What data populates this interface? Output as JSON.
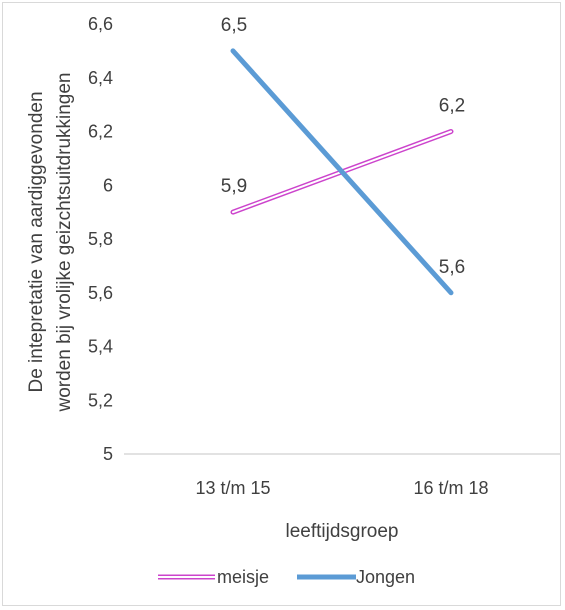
{
  "chart_data": {
    "type": "line",
    "categories": [
      "13 t/m 15",
      "16 t/m 18"
    ],
    "series": [
      {
        "name": "meisje",
        "values": [
          5.9,
          6.2
        ],
        "labels": [
          "5,9",
          "6,2"
        ]
      },
      {
        "name": "Jongen",
        "values": [
          6.5,
          5.6
        ],
        "labels": [
          "6,5",
          "5,6"
        ]
      }
    ],
    "colors": {
      "meisje": "#cc44cc",
      "Jongen": "#5b9bd5"
    },
    "line_style": {
      "meisje": "double",
      "Jongen": "solid"
    },
    "title": "",
    "xlabel": "leeftijdsgroep",
    "ylabel_line1": "De intepretatie van aardiggevonden",
    "ylabel_line2": "worden bij vrolijke geizchtsuitdrukkingen",
    "ylim": [
      5,
      6.6
    ],
    "yticks": [
      "5",
      "5,2",
      "5,4",
      "5,6",
      "5,8",
      "6",
      "6,2",
      "6,4",
      "6,6"
    ],
    "grid": false,
    "legend": "bottom"
  }
}
